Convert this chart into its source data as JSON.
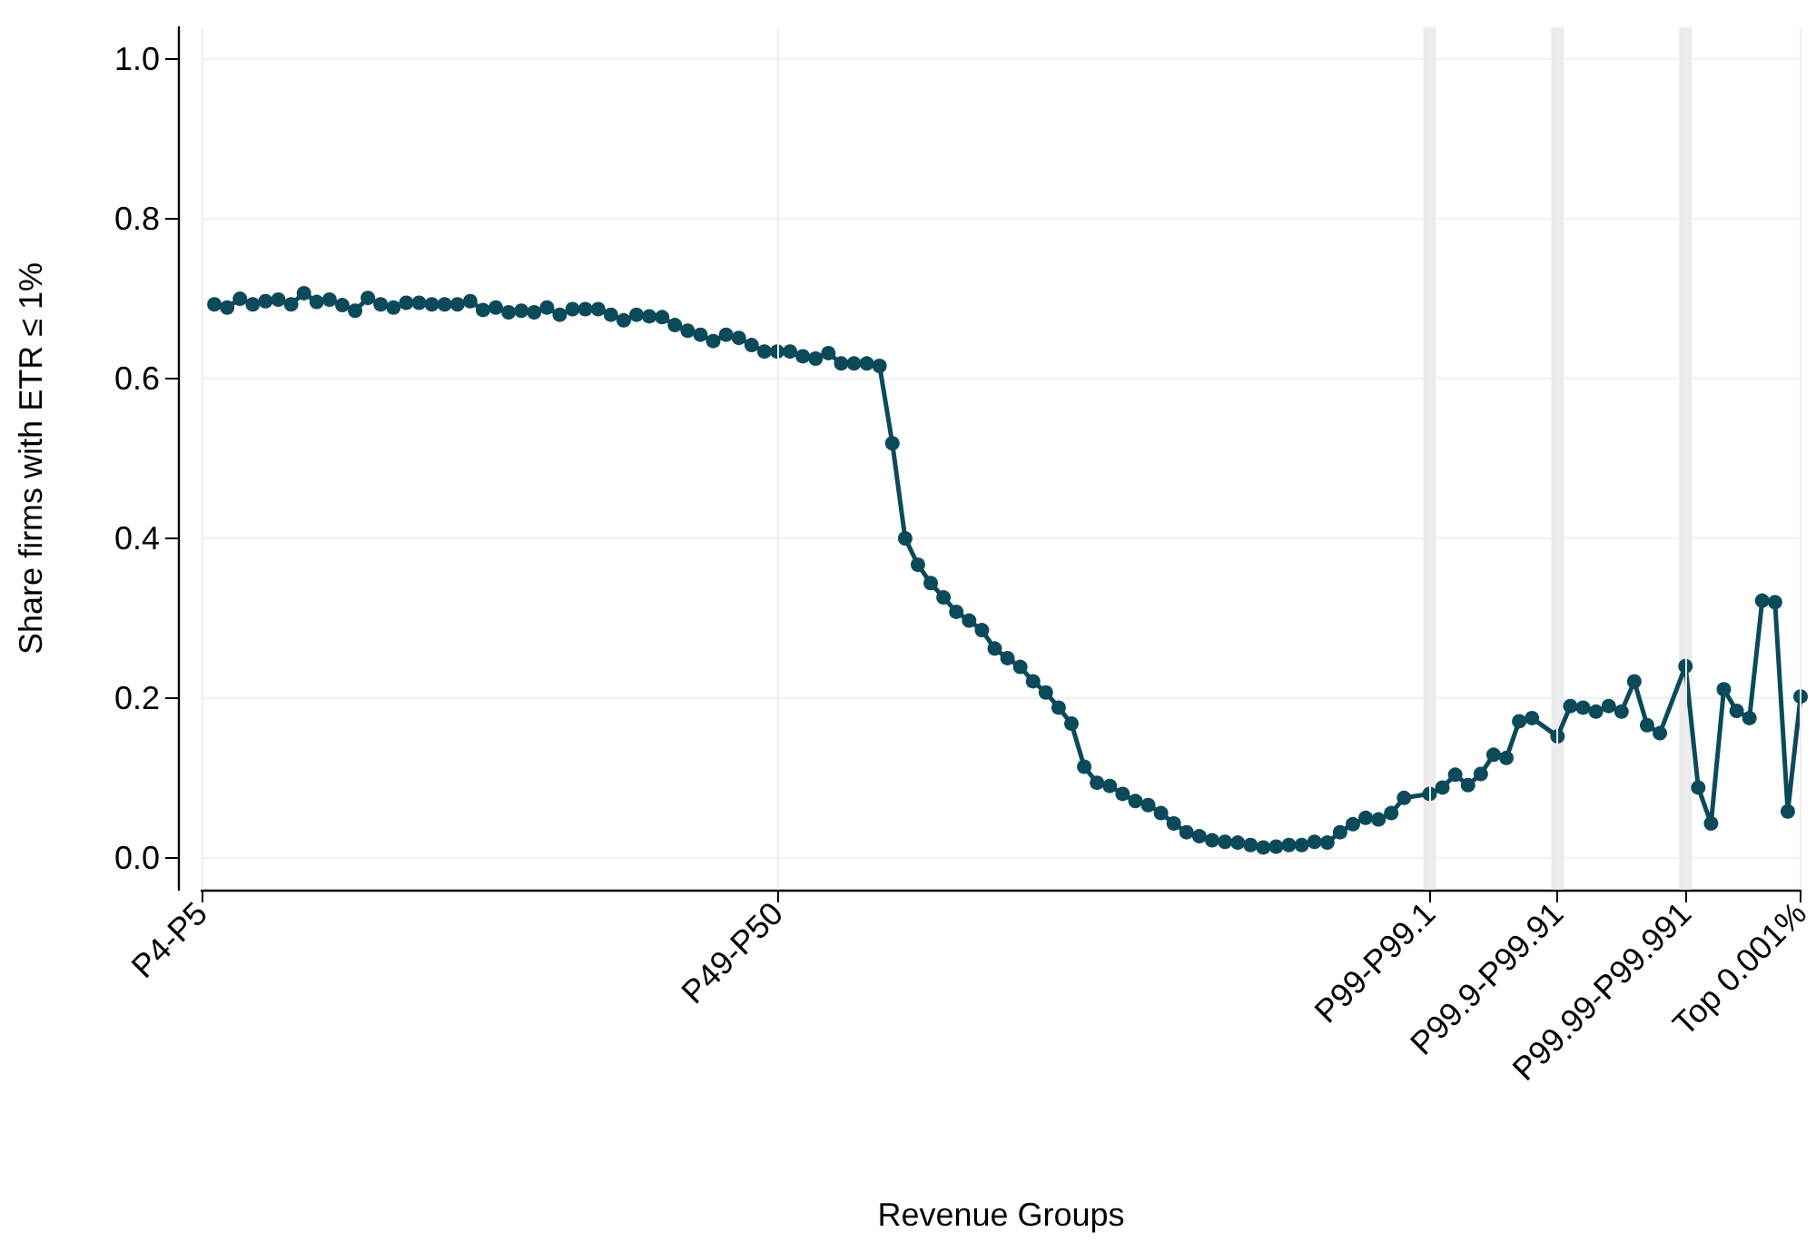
{
  "chart_data": {
    "type": "line",
    "xlabel": "Revenue Groups",
    "ylabel": "Share firms with ETR ≤ 1%",
    "categories": [
      "P4-P5",
      null,
      null,
      null,
      null,
      null,
      null,
      null,
      null,
      null,
      null,
      null,
      null,
      null,
      null,
      null,
      null,
      null,
      null,
      null,
      null,
      null,
      null,
      null,
      null,
      null,
      null,
      null,
      null,
      null,
      null,
      null,
      null,
      null,
      null,
      null,
      null,
      null,
      null,
      null,
      null,
      null,
      null,
      null,
      null,
      "P49-P50",
      null,
      null,
      null,
      null,
      null,
      null,
      null,
      null,
      null,
      null,
      null,
      null,
      null,
      null,
      null,
      null,
      null,
      null,
      null,
      null,
      null,
      null,
      null,
      null,
      null,
      null,
      null,
      null,
      null,
      null,
      null,
      null,
      null,
      null,
      null,
      null,
      null,
      null,
      null,
      null,
      null,
      null,
      null,
      null,
      null,
      null,
      null,
      null,
      null,
      null,
      "P99-P99.1",
      null,
      null,
      null,
      null,
      null,
      null,
      null,
      null,
      null,
      "P99.9-P99.91",
      null,
      null,
      null,
      null,
      null,
      null,
      null,
      null,
      null,
      "P99.99-P99.991",
      null,
      null,
      null,
      null,
      null,
      null,
      null,
      null,
      "Top 0.001%"
    ],
    "series": [
      {
        "color": "#0c4a5a",
        "values": [
          null,
          0.693,
          0.689,
          0.7,
          0.693,
          0.697,
          0.699,
          0.693,
          0.707,
          0.696,
          0.699,
          0.692,
          0.685,
          0.701,
          0.693,
          0.689,
          0.695,
          0.695,
          0.693,
          0.693,
          0.693,
          0.697,
          0.686,
          0.689,
          0.683,
          0.685,
          0.683,
          0.689,
          0.68,
          0.687,
          0.687,
          0.687,
          0.68,
          0.673,
          0.68,
          0.678,
          0.677,
          0.667,
          0.66,
          0.655,
          0.647,
          0.655,
          0.651,
          0.642,
          0.634,
          0.634,
          0.634,
          0.628,
          0.625,
          0.632,
          0.619,
          0.619,
          0.619,
          0.616,
          0.519,
          0.4,
          0.367,
          0.344,
          0.326,
          0.308,
          0.297,
          0.285,
          0.262,
          0.25,
          0.239,
          0.221,
          0.207,
          0.188,
          0.168,
          0.114,
          0.094,
          0.09,
          0.08,
          0.071,
          0.066,
          0.056,
          0.043,
          0.032,
          0.027,
          0.022,
          0.02,
          0.019,
          0.016,
          0.013,
          0.014,
          0.016,
          0.016,
          0.02,
          0.019,
          0.032,
          0.042,
          0.05,
          0.048,
          0.056,
          0.075,
          null,
          0.08,
          0.088,
          0.104,
          0.091,
          0.105,
          0.129,
          0.125,
          0.171,
          0.175,
          null,
          0.152,
          0.19,
          0.188,
          0.183,
          0.19,
          0.183,
          0.221,
          0.166,
          0.156,
          null,
          0.24,
          0.088,
          0.043,
          0.211,
          0.184,
          0.175,
          0.322,
          0.32,
          0.058,
          0.202
        ]
      }
    ],
    "ylim": [
      -0.04,
      1.04
    ],
    "yticks": [
      {
        "value": 0,
        "label": "0.0"
      },
      0.2,
      0.4,
      0.6,
      0.8,
      {
        "value": 1,
        "label": "1.0"
      }
    ],
    "bands": [
      {
        "axis": "x",
        "from": "P99-P99.1",
        "to": "P99-P99.1",
        "color": "#ebebeb"
      },
      {
        "axis": "x",
        "from": "P99.9-P99.91",
        "to": "P99.9-P99.91",
        "color": "#ebebeb"
      },
      {
        "axis": "x",
        "from": "P99.99-P99.991",
        "to": "P99.99-P99.991",
        "color": "#ebebeb"
      }
    ],
    "grid": true,
    "marker": "circle",
    "line_style": "solid"
  }
}
